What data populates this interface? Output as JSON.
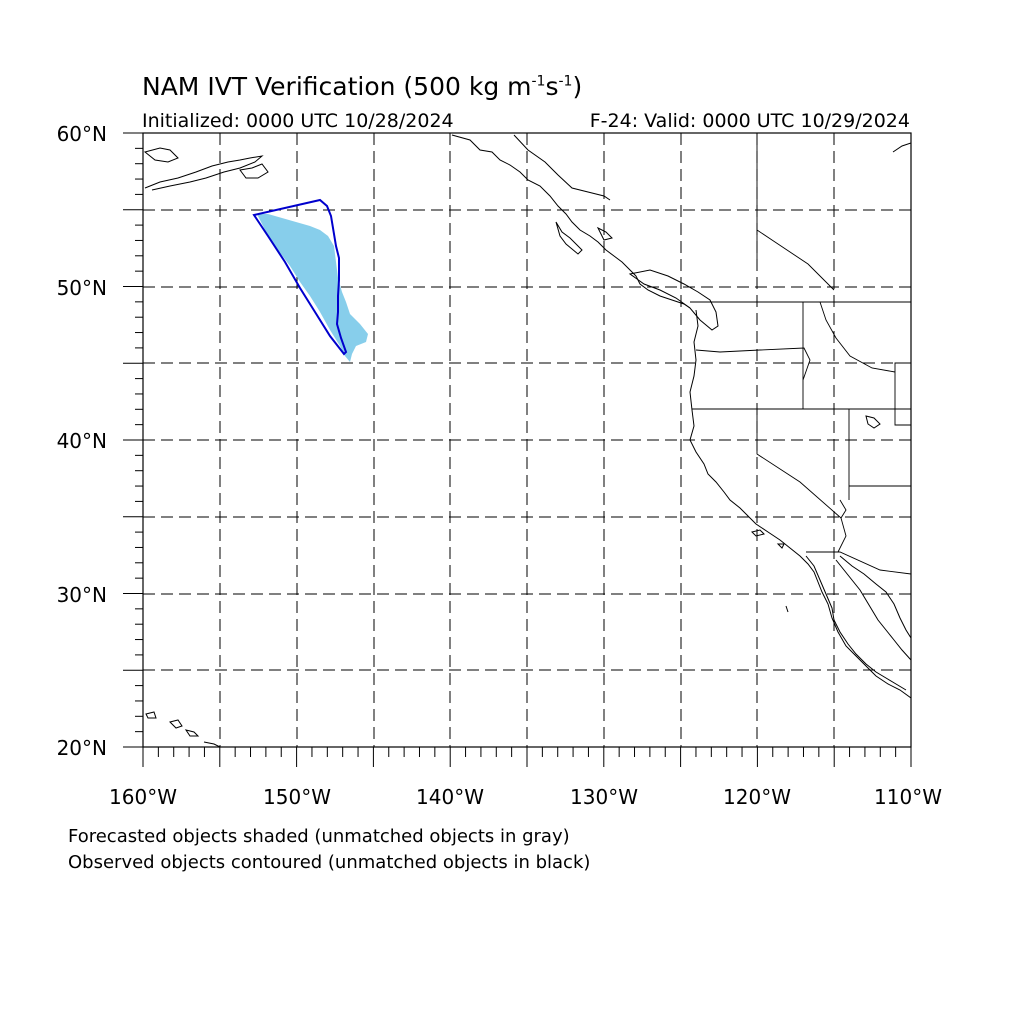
{
  "title": {
    "main": "NAM IVT Verification (500 kg m",
    "exp1": "-1",
    "mid": "s",
    "exp2": "-1",
    "end": ")"
  },
  "subtitle_left": "Initialized: 0000 UTC 10/28/2024",
  "subtitle_right": "F-24: Valid: 0000 UTC 10/29/2024",
  "notes": [
    "Forecasted objects shaded (unmatched objects in gray)",
    "Observed objects contoured (unmatched objects in black)"
  ],
  "axes": {
    "lat_labels": [
      "60°N",
      "50°N",
      "40°N",
      "30°N",
      "20°N"
    ],
    "lon_labels": [
      "160°W",
      "150°W",
      "140°W",
      "130°W",
      "120°W",
      "110°W"
    ],
    "lat_range": [
      20,
      60
    ],
    "lon_range": [
      -160,
      -110
    ]
  },
  "colors": {
    "forecast_fill": "#87ceeb",
    "observed_contour": "#0000cd",
    "coast": "#000000",
    "grid": "#000000"
  }
}
